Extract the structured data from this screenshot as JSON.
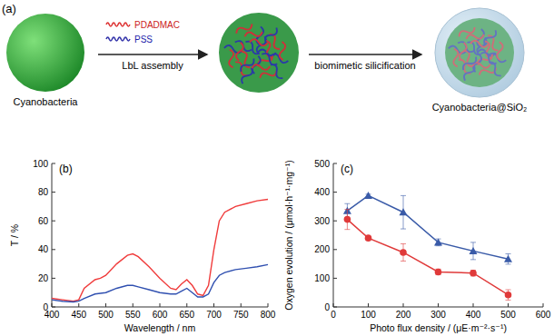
{
  "diagram": {
    "label": "(a)",
    "polymer_1": "PDADMAC",
    "polymer_2": "PSS",
    "step_1": "LbL assembly",
    "step_2": "biomimetic silicification",
    "start": "Cyanobacteria",
    "end": "Cyanobacteria@SiO₂"
  },
  "chart_data": [
    {
      "type": "line",
      "title": "(b)",
      "x_label": "Wavelength / nm",
      "y_label": "T / %",
      "x": [
        400,
        420,
        440,
        450,
        460,
        480,
        490,
        500,
        520,
        540,
        550,
        560,
        580,
        600,
        620,
        630,
        640,
        650,
        660,
        670,
        680,
        690,
        700,
        710,
        720,
        740,
        760,
        780,
        800
      ],
      "series": [
        {
          "color": "#f03c3c",
          "values": [
            6,
            5,
            4,
            5,
            13,
            19,
            20,
            22,
            30,
            36,
            37,
            35,
            28,
            20,
            13,
            12,
            16,
            19,
            15,
            9,
            8,
            15,
            40,
            60,
            66,
            70,
            72,
            74,
            75
          ]
        },
        {
          "color": "#3050b0",
          "values": [
            5,
            4,
            3.5,
            4,
            6,
            9,
            9.5,
            10,
            13,
            15,
            15,
            14,
            12,
            10,
            9,
            9,
            11,
            13,
            10,
            7,
            7,
            9,
            17,
            22,
            24,
            26,
            27,
            28,
            29.5
          ]
        }
      ],
      "xlim": [
        400,
        800
      ],
      "xticks": [
        400,
        450,
        500,
        550,
        600,
        650,
        700,
        750,
        800
      ],
      "ylim": [
        0,
        100
      ],
      "yticks": [
        0,
        20,
        40,
        60,
        80,
        100
      ],
      "grid": false
    },
    {
      "type": "line",
      "title": "(c)",
      "x_label": "Photo flux density / (μE·m⁻²·s⁻¹)",
      "y_label": "Oxygen evolution / (μmol·h⁻¹·mg⁻¹)",
      "x": [
        40,
        100,
        200,
        300,
        400,
        500
      ],
      "series": [
        {
          "color": "#3a5ba8",
          "marker": "triangle",
          "values": [
            335,
            388,
            330,
            225,
            195,
            167
          ],
          "errors": [
            25,
            5,
            58,
            12,
            30,
            18
          ]
        },
        {
          "color": "#e03a3a",
          "marker": "circle",
          "values": [
            305,
            240,
            190,
            122,
            118,
            42
          ],
          "errors": [
            35,
            5,
            30,
            10,
            10,
            18
          ]
        }
      ],
      "xlim": [
        0,
        600
      ],
      "xticks": [
        0,
        100,
        200,
        300,
        400,
        500,
        600
      ],
      "ylim": [
        0,
        500
      ],
      "yticks": [
        0,
        100,
        200,
        300,
        400,
        500
      ],
      "grid": false
    }
  ]
}
